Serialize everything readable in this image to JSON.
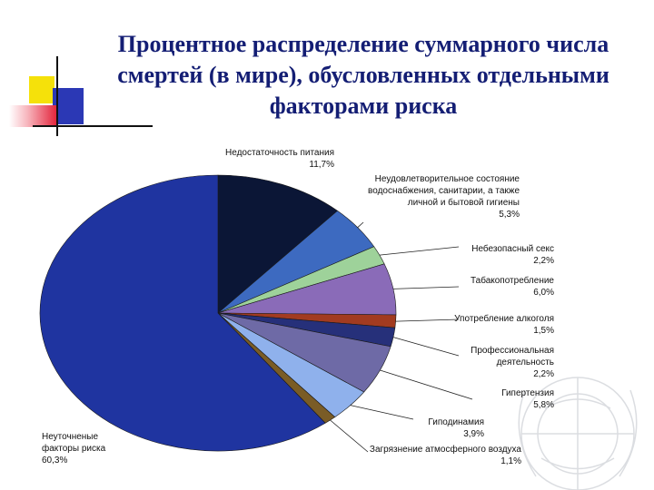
{
  "title_lines": [
    "Процентное распределение суммарного числа",
    "смертей (в мире), обусловленных отдельными",
    "факторами риска"
  ],
  "chart_data": {
    "type": "pie",
    "title": "Процентное распределение суммарного числа смертей (в мире), обусловленных отдельными факторами риска",
    "slices": [
      {
        "label_lines": [
          "Недостаточность питания"
        ],
        "pct_text": "11,7%",
        "value": 11.7,
        "color": "#0b1636"
      },
      {
        "label_lines": [
          "Неудовлетворительное состояние",
          "водоснабжения, санитарии, а также",
          "личной и бытовой гигиены"
        ],
        "pct_text": "5,3%",
        "value": 5.3,
        "color": "#3d6ac0"
      },
      {
        "label_lines": [
          "Небезопасный секс"
        ],
        "pct_text": "2,2%",
        "value": 2.2,
        "color": "#9ed29a"
      },
      {
        "label_lines": [
          "Табакопотребление"
        ],
        "pct_text": "6,0%",
        "value": 6.0,
        "color": "#8a6bb8"
      },
      {
        "label_lines": [
          "Употребление алкоголя"
        ],
        "pct_text": "1,5%",
        "value": 1.5,
        "color": "#a23b20"
      },
      {
        "label_lines": [
          "Профессиональная",
          "деятельность"
        ],
        "pct_text": "2,2%",
        "value": 2.2,
        "color": "#26307a"
      },
      {
        "label_lines": [
          "Гипертензия"
        ],
        "pct_text": "5,8%",
        "value": 5.8,
        "color": "#6e6aa6"
      },
      {
        "label_lines": [
          "Гиподинамия"
        ],
        "pct_text": "3,9%",
        "value": 3.9,
        "color": "#8fb1ec"
      },
      {
        "label_lines": [
          "Загрязнение атмосферного воздуха"
        ],
        "pct_text": "1,1%",
        "value": 1.1,
        "color": "#7a5c26"
      },
      {
        "label_lines": [
          "Неуточненые",
          "факторы риска"
        ],
        "pct_text": "60,3%",
        "value": 60.3,
        "color": "#1f34a0"
      }
    ]
  }
}
